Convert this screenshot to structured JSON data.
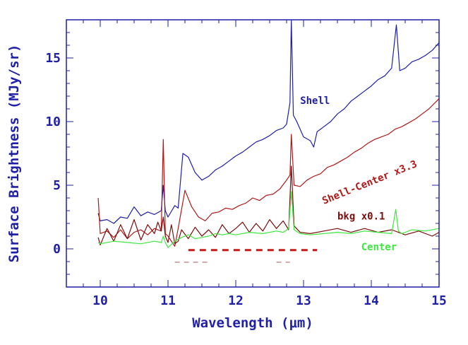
{
  "chart_data": {
    "type": "line",
    "title": "",
    "xlabel": "Wavelength (μm)",
    "ylabel": "Surface Brightness (MJy/sr)",
    "xlim": [
      9.5,
      15
    ],
    "ylim": [
      -3,
      18
    ],
    "x_ticks": [
      10,
      11,
      12,
      13,
      14,
      15
    ],
    "x_tick_labels": [
      "10",
      "11",
      "12",
      "13",
      "14",
      "15"
    ],
    "y_ticks": [
      0,
      5,
      10,
      15
    ],
    "y_tick_labels": [
      "0",
      "5",
      "10",
      "15"
    ],
    "grid": false,
    "legend": "inline-labels",
    "series": [
      {
        "name": "Shell",
        "color": "#1f1fa8",
        "x": [
          9.97,
          10.0,
          10.1,
          10.2,
          10.3,
          10.4,
          10.5,
          10.6,
          10.7,
          10.8,
          10.9,
          10.93,
          10.96,
          11.0,
          11.1,
          11.15,
          11.22,
          11.3,
          11.4,
          11.5,
          11.6,
          11.7,
          11.8,
          11.9,
          12.0,
          12.1,
          12.2,
          12.3,
          12.4,
          12.5,
          12.6,
          12.7,
          12.75,
          12.8,
          12.82,
          12.85,
          12.9,
          13.0,
          13.1,
          13.15,
          13.2,
          13.3,
          13.4,
          13.5,
          13.6,
          13.7,
          13.8,
          13.9,
          14.0,
          14.1,
          14.2,
          14.3,
          14.37,
          14.42,
          14.5,
          14.6,
          14.7,
          14.8,
          14.9,
          15.0
        ],
        "y": [
          2.8,
          2.2,
          2.3,
          2.0,
          2.5,
          2.4,
          3.3,
          2.6,
          2.9,
          2.7,
          3.0,
          5.0,
          3.0,
          2.5,
          3.4,
          3.2,
          7.5,
          7.2,
          6.0,
          5.4,
          5.7,
          6.2,
          6.5,
          6.9,
          7.3,
          7.6,
          8.0,
          8.4,
          8.6,
          8.9,
          9.3,
          9.5,
          9.8,
          11.5,
          18.0,
          10.5,
          10.0,
          8.8,
          8.5,
          8.0,
          9.2,
          9.6,
          10.0,
          10.6,
          11.0,
          11.6,
          12.0,
          12.4,
          12.8,
          13.3,
          13.6,
          14.2,
          17.6,
          14.0,
          14.2,
          14.7,
          14.9,
          15.2,
          15.6,
          16.2
        ]
      },
      {
        "name": "Shell-Center x3.3",
        "color": "#b01818",
        "x": [
          9.97,
          10.0,
          10.1,
          10.2,
          10.3,
          10.4,
          10.5,
          10.6,
          10.7,
          10.8,
          10.9,
          10.93,
          10.96,
          11.0,
          11.1,
          11.15,
          11.25,
          11.35,
          11.45,
          11.55,
          11.65,
          11.75,
          11.85,
          11.95,
          12.05,
          12.15,
          12.25,
          12.35,
          12.45,
          12.55,
          12.65,
          12.75,
          12.8,
          12.82,
          12.86,
          12.95,
          13.05,
          13.15,
          13.25,
          13.35,
          13.45,
          13.55,
          13.65,
          13.75,
          13.85,
          13.95,
          14.05,
          14.15,
          14.25,
          14.35,
          14.45,
          14.55,
          14.65,
          14.75,
          14.85,
          15.0
        ],
        "y": [
          4.0,
          1.2,
          1.4,
          0.9,
          1.5,
          0.8,
          1.3,
          1.5,
          1.1,
          1.6,
          1.4,
          8.6,
          1.2,
          1.0,
          0.2,
          1.6,
          4.6,
          3.3,
          2.5,
          2.2,
          2.8,
          2.9,
          3.2,
          3.1,
          3.4,
          3.6,
          4.0,
          3.8,
          4.2,
          4.3,
          4.7,
          5.4,
          5.8,
          9.0,
          5.0,
          4.9,
          5.4,
          5.7,
          5.9,
          6.4,
          6.6,
          6.9,
          7.2,
          7.6,
          7.9,
          8.3,
          8.6,
          8.8,
          9.0,
          9.4,
          9.6,
          9.9,
          10.2,
          10.6,
          11.0,
          11.8
        ]
      },
      {
        "name": "bkg x0.1",
        "color": "#7a0d0d",
        "x": [
          9.97,
          10.0,
          10.1,
          10.2,
          10.3,
          10.4,
          10.5,
          10.6,
          10.7,
          10.8,
          10.85,
          10.9,
          10.93,
          10.96,
          11.0,
          11.05,
          11.1,
          11.15,
          11.2,
          11.3,
          11.4,
          11.5,
          11.6,
          11.7,
          11.8,
          11.9,
          12.0,
          12.1,
          12.2,
          12.3,
          12.4,
          12.5,
          12.6,
          12.7,
          12.78,
          12.82,
          12.86,
          12.95,
          13.1,
          13.3,
          13.5,
          13.7,
          13.9,
          14.1,
          14.3,
          14.5,
          14.7,
          14.9,
          15.0
        ],
        "y": [
          0.9,
          0.3,
          1.6,
          0.6,
          1.9,
          0.8,
          2.3,
          0.7,
          1.9,
          1.2,
          2.1,
          1.4,
          2.5,
          1.0,
          0.5,
          1.9,
          0.4,
          0.6,
          1.5,
          0.8,
          1.7,
          1.0,
          1.5,
          0.9,
          1.9,
          1.2,
          1.6,
          2.1,
          1.3,
          2.0,
          1.4,
          2.3,
          1.6,
          2.2,
          1.5,
          6.5,
          1.8,
          1.3,
          1.2,
          1.4,
          1.6,
          1.3,
          1.6,
          1.3,
          1.5,
          1.1,
          1.4,
          1.0,
          1.3
        ]
      },
      {
        "name": "Center",
        "color": "#3ee83e",
        "x": [
          9.97,
          10.0,
          10.2,
          10.4,
          10.6,
          10.8,
          10.9,
          10.93,
          10.96,
          11.0,
          11.1,
          11.2,
          11.3,
          11.4,
          11.5,
          11.6,
          11.7,
          11.8,
          11.9,
          12.0,
          12.2,
          12.4,
          12.6,
          12.7,
          12.78,
          12.82,
          12.86,
          12.95,
          13.1,
          13.3,
          13.5,
          13.7,
          13.9,
          14.1,
          14.3,
          14.36,
          14.4,
          14.45,
          14.6,
          14.8,
          15.0
        ],
        "y": [
          0.5,
          0.4,
          0.6,
          0.5,
          0.4,
          0.6,
          0.5,
          1.0,
          0.5,
          0.1,
          0.6,
          0.9,
          1.1,
          0.8,
          0.9,
          1.0,
          1.2,
          1.1,
          1.2,
          1.1,
          1.3,
          1.2,
          1.4,
          1.3,
          1.6,
          4.5,
          1.5,
          1.2,
          1.1,
          1.2,
          1.3,
          1.2,
          1.4,
          1.3,
          1.2,
          3.1,
          1.4,
          1.2,
          1.5,
          1.4,
          1.6
        ]
      }
    ],
    "annotations": [
      {
        "text": "Shell",
        "x": 12.95,
        "y": 11.4,
        "color": "#1f1fa8",
        "rotate": 0
      },
      {
        "text": "Shell-Center x3.3",
        "x": 13.3,
        "y": 3.5,
        "color": "#b01818",
        "rotate": -22
      },
      {
        "text": "bkg x0.1",
        "x": 13.5,
        "y": 2.3,
        "color": "#7a0d0d",
        "rotate": 0
      },
      {
        "text": "Center",
        "x": 13.85,
        "y": -0.1,
        "color": "#3ee83e",
        "rotate": 0
      }
    ],
    "reference_lines": [
      {
        "x1": 11.3,
        "x2": 13.2,
        "y": -0.1,
        "color": "#c81818",
        "style": "dashed",
        "width": 3
      },
      {
        "x1": 11.1,
        "x2": 11.6,
        "y": -1.05,
        "color": "#c89090",
        "style": "dashed",
        "width": 1.5
      },
      {
        "x1": 12.6,
        "x2": 12.8,
        "y": -1.05,
        "color": "#c89090",
        "style": "dashed",
        "width": 1.5
      }
    ]
  }
}
